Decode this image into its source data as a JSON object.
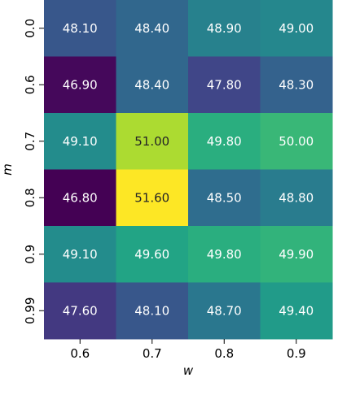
{
  "chart_data": {
    "type": "heatmap",
    "title": "",
    "xlabel": "w",
    "ylabel": "m",
    "x_categories": [
      "0.6",
      "0.7",
      "0.8",
      "0.9"
    ],
    "y_categories": [
      "0.0",
      "0.6",
      "0.7",
      "0.8",
      "0.9",
      "0.99"
    ],
    "values": [
      [
        48.1,
        48.4,
        48.9,
        49.0
      ],
      [
        46.9,
        48.4,
        47.8,
        48.3
      ],
      [
        49.1,
        51.0,
        49.8,
        50.0
      ],
      [
        46.8,
        51.6,
        48.5,
        48.8
      ],
      [
        49.1,
        49.6,
        49.8,
        49.9
      ],
      [
        47.6,
        48.1,
        48.7,
        49.4
      ]
    ],
    "value_format": "2 decimals",
    "colormap": "viridis",
    "vmin": 46.8,
    "vmax": 51.6,
    "colorbar": false,
    "grid": false
  }
}
